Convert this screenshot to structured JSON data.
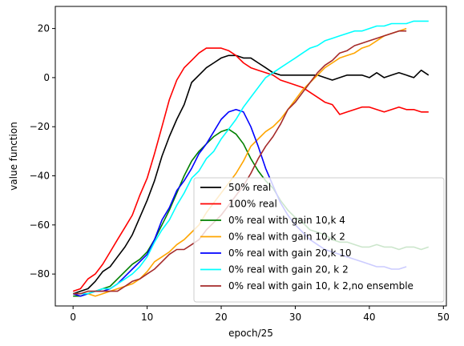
{
  "chart_data": {
    "type": "line",
    "xlabel": "epoch/25",
    "ylabel": "value function",
    "xlim": [
      -2.4,
      50.4
    ],
    "ylim": [
      -93,
      29
    ],
    "xticks": [
      0,
      10,
      20,
      30,
      40,
      50
    ],
    "yticks": [
      -80,
      -60,
      -40,
      -20,
      0,
      20
    ],
    "grid": false,
    "legend_position": "lower-right",
    "series": [
      {
        "name": "50% real",
        "color": "#000000",
        "x": [
          0,
          1,
          2,
          3,
          4,
          5,
          6,
          7,
          8,
          9,
          10,
          11,
          12,
          13,
          14,
          15,
          16,
          17,
          18,
          19,
          20,
          21,
          22,
          23,
          24,
          25,
          26,
          27,
          28,
          29,
          30,
          31,
          32,
          33,
          34,
          35,
          36,
          37,
          38,
          39,
          40,
          41,
          42,
          43,
          44,
          45,
          46,
          47,
          48
        ],
        "y": [
          -88,
          -87,
          -86,
          -83,
          -79,
          -77,
          -73,
          -69,
          -64,
          -57,
          -50,
          -42,
          -32,
          -24,
          -17,
          -11,
          -2,
          1,
          4,
          6,
          8,
          9,
          9,
          8,
          8,
          6,
          4,
          2,
          1,
          1,
          1,
          1,
          1,
          1,
          0,
          -1,
          0,
          1,
          1,
          1,
          0,
          2,
          0,
          1,
          2,
          1,
          0,
          3,
          1
        ]
      },
      {
        "name": "100% real",
        "color": "#ff0000",
        "x": [
          0,
          1,
          2,
          3,
          4,
          5,
          6,
          7,
          8,
          9,
          10,
          11,
          12,
          13,
          14,
          15,
          16,
          17,
          18,
          19,
          20,
          21,
          22,
          23,
          24,
          25,
          26,
          27,
          28,
          29,
          30,
          31,
          32,
          33,
          34,
          35,
          36,
          37,
          38,
          39,
          40,
          41,
          42,
          43,
          44,
          45,
          46,
          47,
          48
        ],
        "y": [
          -87,
          -86,
          -82,
          -80,
          -76,
          -71,
          -66,
          -61,
          -56,
          -48,
          -41,
          -31,
          -20,
          -9,
          -1,
          4,
          7,
          10,
          12,
          12,
          12,
          11,
          9,
          6,
          4,
          3,
          2,
          1,
          -1,
          -2,
          -3,
          -4,
          -6,
          -8,
          -10,
          -11,
          -15,
          -14,
          -13,
          -12,
          -12,
          -13,
          -14,
          -13,
          -12,
          -13,
          -13,
          -14,
          -14
        ]
      },
      {
        "name": "0% real with gain 10,k 4",
        "color": "#008000",
        "x": [
          0,
          1,
          2,
          3,
          4,
          5,
          6,
          7,
          8,
          9,
          10,
          11,
          12,
          13,
          14,
          15,
          16,
          17,
          18,
          19,
          20,
          21,
          22,
          23,
          24,
          25,
          26,
          27,
          28,
          29,
          30,
          31,
          32,
          33,
          34,
          35,
          36,
          37,
          38,
          39,
          40,
          41,
          42,
          43,
          44,
          45,
          46,
          47,
          48
        ],
        "y": [
          -89,
          -89,
          -88,
          -87,
          -86,
          -85,
          -82,
          -79,
          -76,
          -74,
          -71,
          -66,
          -60,
          -54,
          -47,
          -40,
          -34,
          -30,
          -27,
          -24,
          -22,
          -21,
          -23,
          -27,
          -33,
          -38,
          -42,
          -45,
          -50,
          -54,
          -57,
          -59,
          -62,
          -63,
          -64,
          -66,
          -67,
          -67,
          -68,
          -69,
          -69,
          -68,
          -69,
          -69,
          -70,
          -69,
          -69,
          -70,
          -69
        ]
      },
      {
        "name": "0% real with gain 10,k 2",
        "color": "#ffa500",
        "x": [
          0,
          1,
          2,
          3,
          4,
          5,
          6,
          7,
          8,
          9,
          10,
          11,
          12,
          13,
          14,
          15,
          16,
          17,
          18,
          19,
          20,
          21,
          22,
          23,
          24,
          25,
          26,
          27,
          28,
          29,
          30,
          31,
          32,
          33,
          34,
          35,
          36,
          37,
          38,
          39,
          40,
          41,
          42,
          43,
          44,
          45
        ],
        "y": [
          -88,
          -88,
          -88,
          -89,
          -88,
          -87,
          -86,
          -85,
          -84,
          -82,
          -79,
          -75,
          -73,
          -71,
          -68,
          -66,
          -63,
          -60,
          -55,
          -51,
          -47,
          -43,
          -39,
          -34,
          -28,
          -25,
          -22,
          -20,
          -17,
          -13,
          -9,
          -5,
          -2,
          1,
          4,
          6,
          8,
          9,
          10,
          12,
          13,
          15,
          17,
          18,
          19,
          20
        ]
      },
      {
        "name": "0% real with gain 20,k 10",
        "color": "#0000ff",
        "x": [
          0,
          1,
          2,
          3,
          4,
          5,
          6,
          7,
          8,
          9,
          10,
          11,
          12,
          13,
          14,
          15,
          16,
          17,
          18,
          19,
          20,
          21,
          22,
          23,
          24,
          25,
          26,
          27,
          28,
          29,
          30,
          31,
          32,
          33,
          34,
          35,
          36,
          37,
          38,
          39,
          40,
          41,
          42,
          43,
          44,
          45
        ],
        "y": [
          -88,
          -89,
          -88,
          -87,
          -87,
          -86,
          -84,
          -81,
          -78,
          -75,
          -72,
          -66,
          -58,
          -53,
          -46,
          -42,
          -37,
          -31,
          -27,
          -22,
          -17,
          -14,
          -13,
          -14,
          -20,
          -28,
          -37,
          -44,
          -51,
          -56,
          -60,
          -63,
          -66,
          -68,
          -70,
          -71,
          -72,
          -73,
          -74,
          -75,
          -76,
          -77,
          -77,
          -78,
          -78,
          -77
        ]
      },
      {
        "name": "0% real with gain 20, k 2",
        "color": "#00ffff",
        "x": [
          0,
          1,
          2,
          3,
          4,
          5,
          6,
          7,
          8,
          9,
          10,
          11,
          12,
          13,
          14,
          15,
          16,
          17,
          18,
          19,
          20,
          21,
          22,
          23,
          24,
          25,
          26,
          27,
          28,
          29,
          30,
          31,
          32,
          33,
          34,
          35,
          36,
          37,
          38,
          39,
          40,
          41,
          42,
          43,
          44,
          45,
          46,
          47,
          48
        ],
        "y": [
          -88,
          -88,
          -88,
          -87,
          -86,
          -86,
          -84,
          -82,
          -80,
          -77,
          -73,
          -67,
          -62,
          -58,
          -52,
          -47,
          -41,
          -38,
          -33,
          -30,
          -25,
          -21,
          -17,
          -12,
          -8,
          -4,
          0,
          2,
          4,
          6,
          8,
          10,
          12,
          13,
          15,
          16,
          17,
          18,
          19,
          19,
          20,
          21,
          21,
          22,
          22,
          22,
          23,
          23,
          23
        ]
      },
      {
        "name": "0% real with gain 10, k 2,no ensemble",
        "color": "#a52a2a",
        "x": [
          0,
          1,
          2,
          3,
          4,
          5,
          6,
          7,
          8,
          9,
          10,
          11,
          12,
          13,
          14,
          15,
          16,
          17,
          18,
          19,
          20,
          21,
          22,
          23,
          24,
          25,
          26,
          27,
          28,
          29,
          30,
          31,
          32,
          33,
          34,
          35,
          36,
          37,
          38,
          39,
          40,
          41,
          42,
          43,
          44,
          45
        ],
        "y": [
          -88,
          -88,
          -87,
          -87,
          -87,
          -87,
          -87,
          -85,
          -83,
          -82,
          -80,
          -78,
          -75,
          -72,
          -70,
          -70,
          -68,
          -66,
          -62,
          -59,
          -56,
          -52,
          -48,
          -44,
          -39,
          -33,
          -28,
          -24,
          -19,
          -13,
          -10,
          -6,
          -2,
          2,
          5,
          7,
          10,
          11,
          13,
          14,
          15,
          16,
          17,
          18,
          19,
          19
        ]
      }
    ]
  }
}
